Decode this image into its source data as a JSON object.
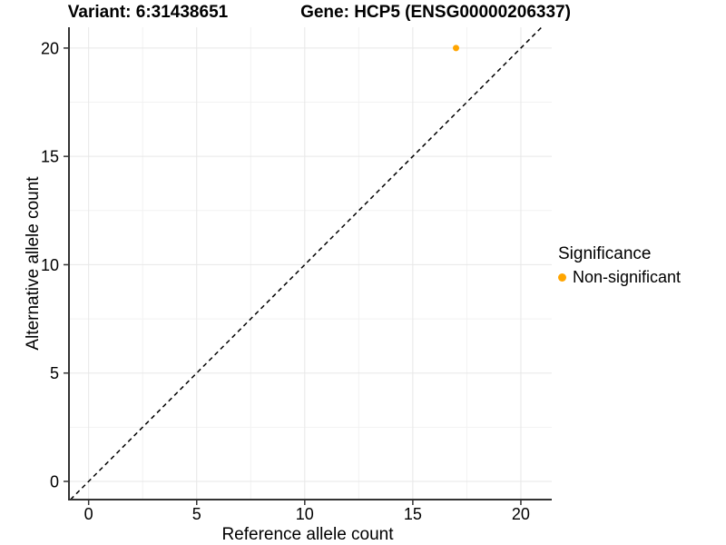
{
  "chart_data": {
    "type": "scatter",
    "titles": {
      "left": "Variant: 6:31438651",
      "right": "Gene: HCP5 (ENSG00000206337)"
    },
    "xlabel": "Reference allele count",
    "ylabel": "Alternative allele count",
    "xlim": [
      -0.91,
      21.43
    ],
    "ylim": [
      -0.84,
      20.96
    ],
    "x_ticks": [
      0,
      5,
      10,
      15,
      20
    ],
    "y_ticks": [
      0,
      5,
      10,
      15,
      20
    ],
    "x_minor_ticks": [
      2.5,
      7.5,
      12.5,
      17.5
    ],
    "y_minor_ticks": [
      2.5,
      7.5,
      12.5,
      17.5
    ],
    "grid": "major+minor",
    "legend_position": "right",
    "legend": {
      "title": "Significance",
      "entries": [
        {
          "label": "Non-significant",
          "color": "#FFA500"
        }
      ]
    },
    "series": [
      {
        "name": "Non-significant",
        "color": "#FFA500",
        "points": [
          {
            "x": 17,
            "y": 20
          }
        ]
      }
    ],
    "identity_line": {
      "type": "y=x",
      "linestyle": "dashed",
      "color": "#000000"
    }
  }
}
